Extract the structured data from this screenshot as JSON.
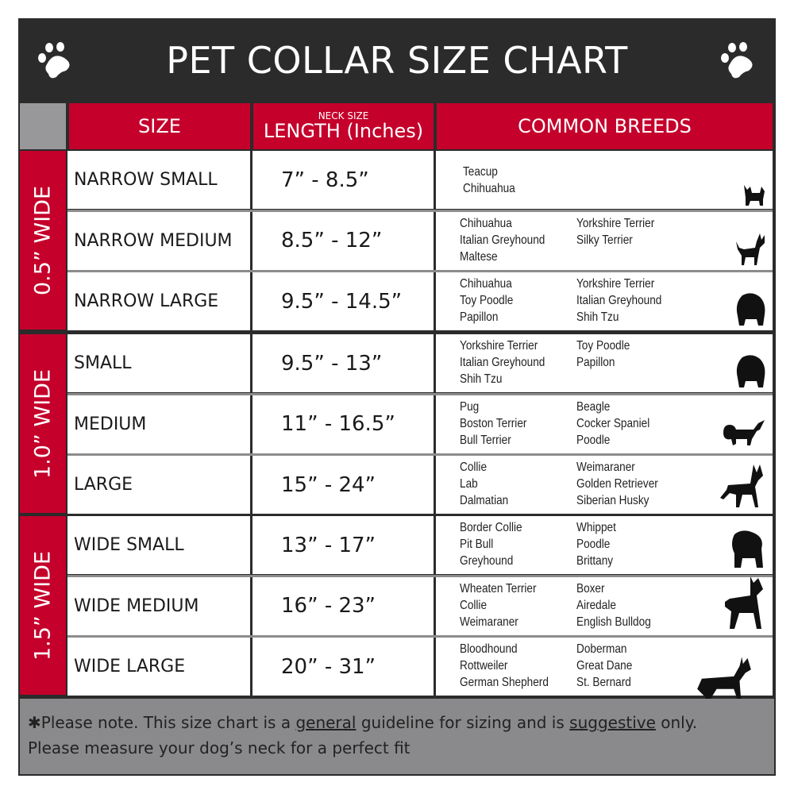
{
  "title": "PET COLLAR SIZE CHART",
  "header": {
    "size": "SIZE",
    "neck_small": "NECK SIZE",
    "length": "LENGTH (Inches)",
    "breeds": "COMMON BREEDS"
  },
  "groups": [
    {
      "label": "0.5” WIDE",
      "rows": [
        {
          "size": "NARROW SMALL",
          "length": "7” - 8.5”",
          "breeds_col1": [
            "Teacup",
            "Chihuahua"
          ],
          "breeds_col2": [],
          "icon": "small-dog-silhouette-icon"
        },
        {
          "size": "NARROW MEDIUM",
          "length": "8.5” - 12”",
          "breeds_col1": [
            "Chihuahua",
            "Italian Greyhound",
            "Maltese"
          ],
          "breeds_col2": [
            "Yorkshire Terrier",
            "Silky Terrier"
          ],
          "icon": "chihuahua-silhouette-icon"
        },
        {
          "size": "NARROW LARGE",
          "length": "9.5” - 14.5”",
          "breeds_col1": [
            "Chihuahua",
            "Toy Poodle",
            "Papillon"
          ],
          "breeds_col2": [
            "Yorkshire Terrier",
            "Italian Greyhound",
            "Shih Tzu"
          ],
          "icon": "fluffy-dog-silhouette-icon"
        }
      ]
    },
    {
      "label": "1.0” WIDE",
      "rows": [
        {
          "size": "SMALL",
          "length": "9.5” - 13”",
          "breeds_col1": [
            "Yorkshire Terrier",
            "Italian Greyhound",
            "Shih Tzu"
          ],
          "breeds_col2": [
            "Toy Poodle",
            "Papillon"
          ],
          "icon": "fluffy-dog-silhouette-icon"
        },
        {
          "size": "MEDIUM",
          "length": "11” - 16.5”",
          "breeds_col1": [
            "Pug",
            "Boston Terrier",
            "Bull Terrier"
          ],
          "breeds_col2": [
            "Beagle",
            "Cocker Spaniel",
            "Poodle"
          ],
          "icon": "spaniel-silhouette-icon"
        },
        {
          "size": "LARGE",
          "length": "15” - 24”",
          "breeds_col1": [
            "Collie",
            "Lab",
            "Dalmatian"
          ],
          "breeds_col2": [
            "Weimaraner",
            "Golden Retriever",
            "Siberian Husky"
          ],
          "icon": "shepherd-silhouette-icon"
        }
      ]
    },
    {
      "label": "1.5” WIDE",
      "rows": [
        {
          "size": "WIDE SMALL",
          "length": "13” - 17”",
          "breeds_col1": [
            "Border Collie",
            "Pit Bull",
            "Greyhound"
          ],
          "breeds_col2": [
            "Whippet",
            "Poodle",
            "Brittany"
          ],
          "icon": "bulldog-silhouette-icon"
        },
        {
          "size": "WIDE MEDIUM",
          "length": "16” - 23”",
          "breeds_col1": [
            "Wheaten Terrier",
            "Collie",
            "Weimaraner"
          ],
          "breeds_col2": [
            "Boxer",
            "Airedale",
            "English Bulldog"
          ],
          "icon": "pitbull-silhouette-icon"
        },
        {
          "size": "WIDE LARGE",
          "length": "20” - 31”",
          "breeds_col1": [
            "Bloodhound",
            "Rottweiler",
            "German Shepherd"
          ],
          "breeds_col2": [
            "Doberman",
            "Great Dane",
            "St. Bernard"
          ],
          "icon": "doberman-silhouette-icon"
        }
      ]
    }
  ],
  "footer": {
    "p1": "✱Please note. This size chart is a",
    "general": "general",
    "p2": " guideline for sizing and is",
    "suggestive": "suggestive",
    "p3": " only.",
    "line2": "Please measure your dog’s neck for a perfect fit"
  },
  "colors": {
    "red": "#c4002b",
    "dark": "#2b2b2b",
    "gray": "#8a8a8c"
  }
}
